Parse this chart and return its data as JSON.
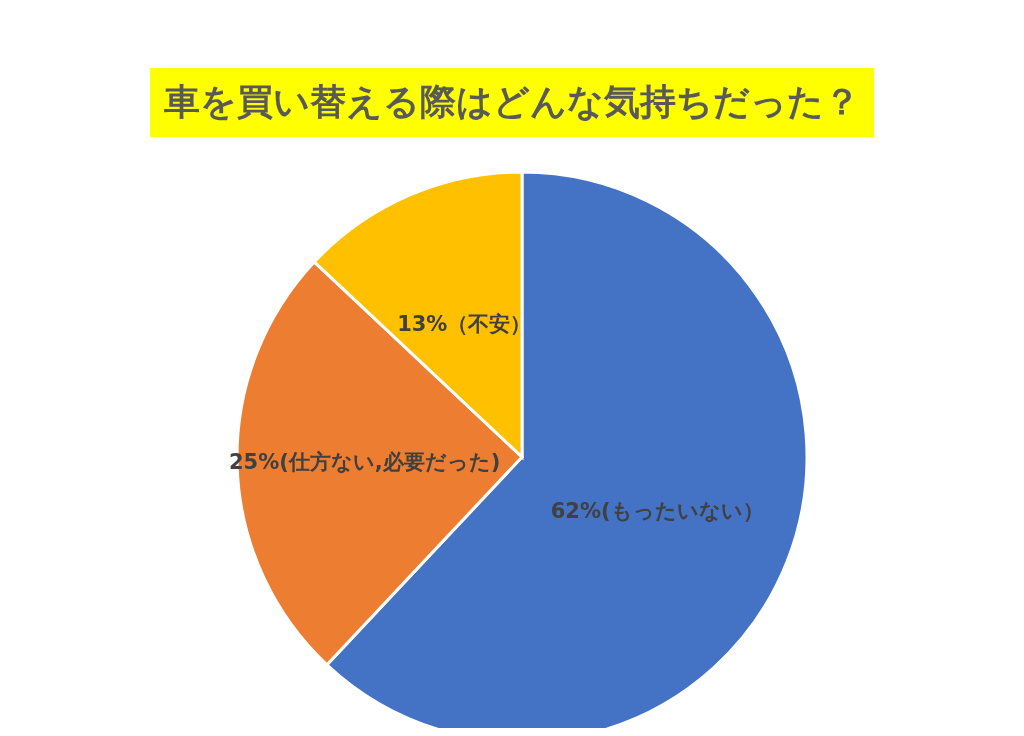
{
  "chart_data": {
    "type": "pie",
    "title": "車を買い替える際はどんな気持ちだった？",
    "categories": [
      "62%(もったいない）",
      "25%(仕方ない,必要だった)",
      "13%（不安）"
    ],
    "values": [
      62,
      25,
      13
    ],
    "colors": [
      "#4472c4",
      "#ed7d31",
      "#ffc000"
    ],
    "legend": false
  }
}
